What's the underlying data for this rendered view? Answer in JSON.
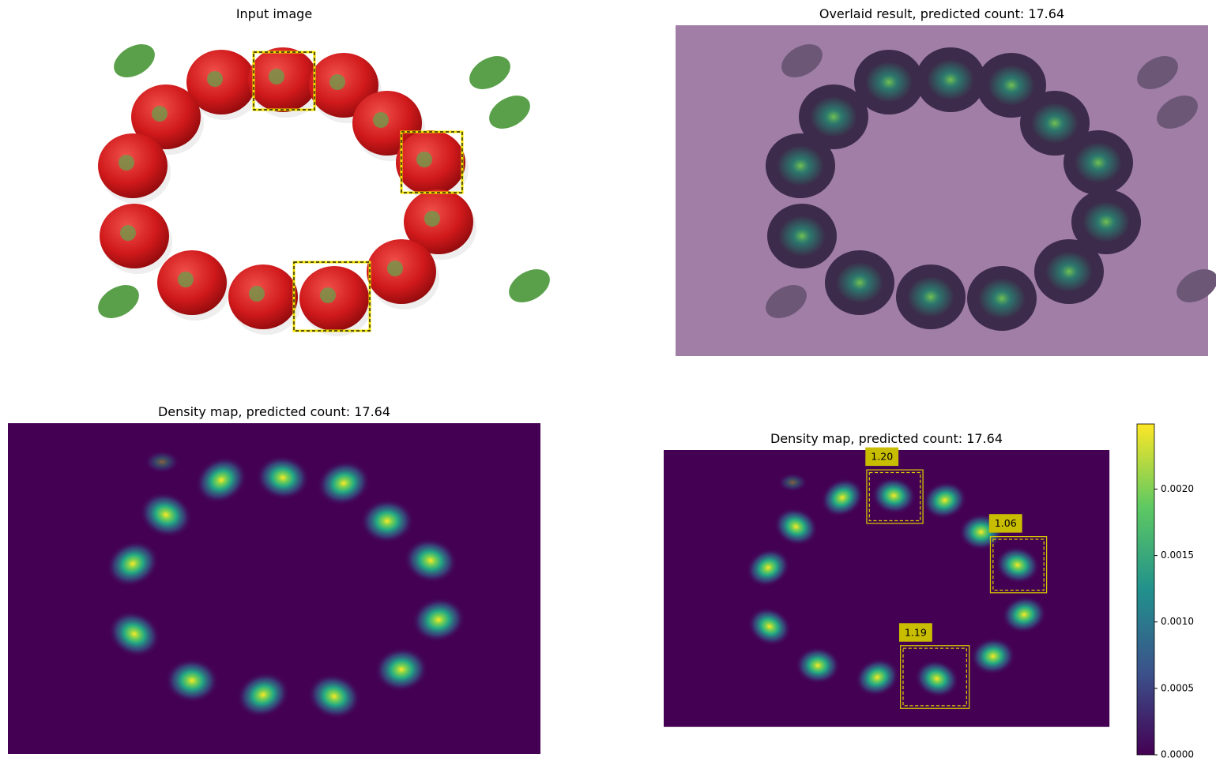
{
  "panels": [
    {
      "title": "Input image"
    },
    {
      "title": "Overlaid result, predicted count: 17.64"
    },
    {
      "title": "Density map, predicted count: 17.64"
    },
    {
      "title": "Density map, predicted count: 17.64",
      "box_labels": [
        "1.20",
        "1.06",
        "1.19"
      ]
    }
  ],
  "colorbar": {
    "ylim": [
      0,
      0.00249
    ],
    "yticks": [
      {
        "value": 0,
        "label": "0.0000"
      },
      {
        "value": 0.0005,
        "label": "0.0005"
      },
      {
        "value": 0.001,
        "label": "0.0010"
      },
      {
        "value": 0.0015,
        "label": "0.0015"
      },
      {
        "value": 0.002,
        "label": "0.0020"
      }
    ]
  }
}
